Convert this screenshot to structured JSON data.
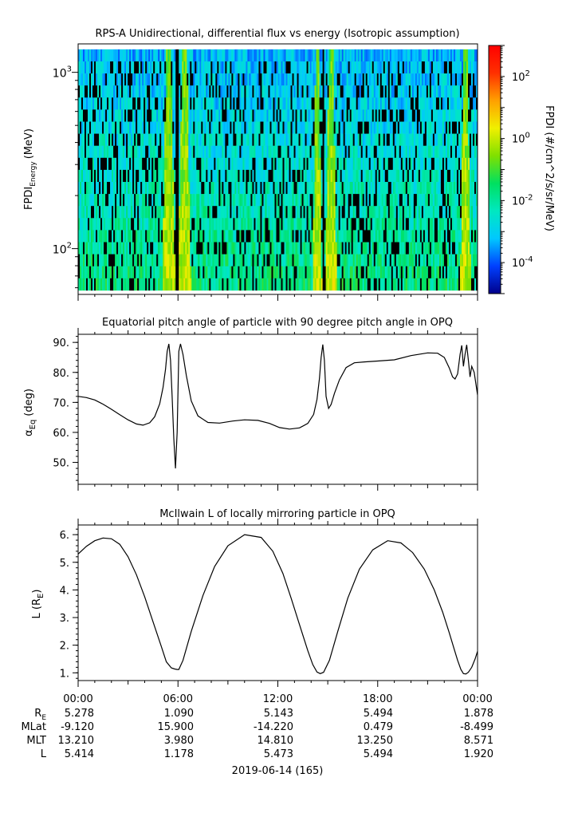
{
  "chart_data": [
    {
      "type": "heatmap",
      "title": "RPS-A Unidirectional, differential flux vs energy (Isotropic assumption)",
      "ylabel_main": "FPDI",
      "ylabel_sub": "Energy",
      "ylabel_unit": "(MeV)",
      "yscale": "log",
      "ylim": [
        55,
        1450
      ],
      "data_ylim": [
        58,
        1350
      ],
      "yticks": [
        {
          "value": 100,
          "base": "10",
          "exp": "2"
        },
        {
          "value": 1000,
          "base": "10",
          "exp": "3"
        }
      ],
      "xlim": [
        0,
        24
      ],
      "bright_regions_hours": [
        [
          5.05,
          5.85
        ],
        [
          6.0,
          6.8
        ],
        [
          14.1,
          14.65
        ],
        [
          14.85,
          15.55
        ],
        [
          22.95,
          23.6
        ]
      ],
      "gap_hours": [
        5.95,
        14.75
      ],
      "colorbar": {
        "label": "FPDI (#/cm^2/s/sr/MeV)",
        "scale": "log",
        "range": [
          1e-05,
          1000
        ],
        "ticks": [
          {
            "value": 100,
            "base": "10",
            "exp": "2"
          },
          {
            "value": 1,
            "base": "10",
            "exp": "0"
          },
          {
            "value": 0.01,
            "base": "10",
            "exp": "-2"
          },
          {
            "value": 0.0001,
            "base": "10",
            "exp": "-4"
          }
        ],
        "colors": [
          "#00008b",
          "#0040ff",
          "#00c8ff",
          "#00e8c0",
          "#00e060",
          "#80e000",
          "#f0f000",
          "#ffa000",
          "#ff3000",
          "#ff0000"
        ]
      }
    },
    {
      "type": "line",
      "title": "Equatorial pitch angle of particle with 90 degree pitch angle in OPQ",
      "ylabel_main": "α",
      "ylabel_sub": "Eq",
      "ylabel_unit": "(deg)",
      "xlim": [
        0,
        24
      ],
      "ylim": [
        42.7,
        92.7
      ],
      "yticks": [
        {
          "value": 50,
          "label": "50."
        },
        {
          "value": 60,
          "label": "60."
        },
        {
          "value": 70,
          "label": "70."
        },
        {
          "value": 80,
          "label": "80."
        },
        {
          "value": 90,
          "label": "90."
        }
      ],
      "x": [
        0,
        0.5,
        1,
        1.5,
        2,
        2.5,
        3,
        3.5,
        3.9,
        4.3,
        4.6,
        4.9,
        5.1,
        5.25,
        5.35,
        5.45,
        5.55,
        5.65,
        5.75,
        5.85,
        5.95,
        6.05,
        6.15,
        6.3,
        6.5,
        6.8,
        7.2,
        7.8,
        8.5,
        9.3,
        10,
        10.8,
        11.5,
        12.1,
        12.7,
        13.3,
        13.8,
        14.15,
        14.35,
        14.5,
        14.6,
        14.7,
        14.8,
        14.9,
        15.05,
        15.2,
        15.4,
        15.7,
        16.1,
        16.6,
        17.2,
        18,
        19,
        20,
        21,
        21.6,
        22,
        22.3,
        22.5,
        22.65,
        22.8,
        22.95,
        23.05,
        23.15,
        23.25,
        23.35,
        23.45,
        23.55,
        23.65,
        23.8,
        24
      ],
      "y": [
        72,
        71.6,
        70.8,
        69.4,
        67.7,
        65.9,
        64.2,
        62.8,
        62.4,
        63.2,
        65.2,
        69.5,
        75,
        81,
        87,
        89.5,
        84,
        72,
        58,
        48,
        60,
        87,
        89.5,
        86,
        79,
        70.5,
        65.5,
        63.3,
        63.1,
        63.8,
        64.2,
        64.0,
        63.0,
        61.6,
        61.1,
        61.5,
        63.0,
        66,
        71,
        78,
        85,
        89.3,
        84,
        72,
        68,
        69.3,
        73,
        77.5,
        81.6,
        83.2,
        83.5,
        83.8,
        84.2,
        85.6,
        86.5,
        86.4,
        85,
        81.5,
        78.5,
        77.8,
        79.5,
        86,
        89,
        82,
        86,
        89.2,
        84,
        78.5,
        82,
        80,
        72.5
      ]
    },
    {
      "type": "line",
      "title": "McIlwain L of locally mirroring particle in OPQ",
      "ylabel_main": "L (R",
      "ylabel_sub": "E",
      "ylabel_unit": ")",
      "xlim": [
        0,
        24
      ],
      "ylim": [
        0.72,
        6.35
      ],
      "yticks": [
        {
          "value": 1,
          "label": "1."
        },
        {
          "value": 2,
          "label": "2."
        },
        {
          "value": 3,
          "label": "3."
        },
        {
          "value": 4,
          "label": "4."
        },
        {
          "value": 5,
          "label": "5."
        },
        {
          "value": 6,
          "label": "6."
        }
      ],
      "x": [
        0,
        0.5,
        1,
        1.5,
        2,
        2.5,
        3,
        3.5,
        4,
        4.5,
        5,
        5.3,
        5.6,
        5.8,
        5.95,
        6.05,
        6.3,
        6.8,
        7.5,
        8.2,
        9,
        10,
        11,
        11.7,
        12.3,
        12.8,
        13.3,
        13.8,
        14.1,
        14.35,
        14.55,
        14.75,
        15.1,
        15.6,
        16.2,
        16.9,
        17.7,
        18.6,
        19.4,
        20.1,
        20.8,
        21.4,
        21.9,
        22.3,
        22.6,
        22.8,
        23,
        23.15,
        23.3,
        23.45,
        23.65,
        23.85,
        24
      ],
      "y": [
        5.3,
        5.58,
        5.78,
        5.88,
        5.85,
        5.65,
        5.2,
        4.55,
        3.75,
        2.85,
        1.95,
        1.4,
        1.18,
        1.14,
        1.12,
        1.12,
        1.45,
        2.5,
        3.8,
        4.85,
        5.6,
        6.0,
        5.9,
        5.4,
        4.6,
        3.7,
        2.75,
        1.8,
        1.3,
        1.03,
        0.97,
        1.02,
        1.45,
        2.5,
        3.7,
        4.75,
        5.45,
        5.78,
        5.7,
        5.35,
        4.75,
        4.0,
        3.2,
        2.45,
        1.85,
        1.45,
        1.12,
        0.97,
        0.96,
        1.02,
        1.2,
        1.5,
        1.78
      ]
    }
  ],
  "time_axis": {
    "ticks": [
      {
        "hour": 0,
        "label": "00:00"
      },
      {
        "hour": 6,
        "label": "06:00"
      },
      {
        "hour": 12,
        "label": "12:00"
      },
      {
        "hour": 18,
        "label": "18:00"
      },
      {
        "hour": 24,
        "label": "00:00"
      }
    ],
    "rows": [
      {
        "label_main": "R",
        "label_sub": "E",
        "values": [
          "5.278",
          "1.090",
          "5.143",
          "5.494",
          "1.878"
        ]
      },
      {
        "label_main": "MLat",
        "label_sub": "",
        "values": [
          "-9.120",
          "15.900",
          "-14.220",
          "0.479",
          "-8.499"
        ]
      },
      {
        "label_main": "MLT",
        "label_sub": "",
        "values": [
          "13.210",
          "3.980",
          "14.810",
          "13.250",
          "8.571"
        ]
      },
      {
        "label_main": "L",
        "label_sub": "",
        "values": [
          "5.414",
          "1.178",
          "5.473",
          "5.494",
          "1.920"
        ]
      }
    ],
    "date_label": "2019-06-14 (165)"
  }
}
